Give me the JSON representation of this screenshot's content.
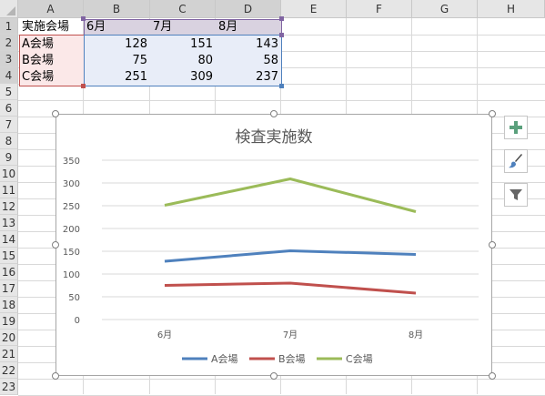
{
  "sheet": {
    "columns": [
      "A",
      "B",
      "C",
      "D",
      "E",
      "F",
      "G",
      "H"
    ],
    "rows": [
      "1",
      "2",
      "3",
      "4",
      "5",
      "6",
      "7",
      "8",
      "9",
      "10",
      "11",
      "12",
      "13",
      "14",
      "15",
      "16",
      "17",
      "18",
      "19",
      "20",
      "21",
      "22",
      "23"
    ],
    "table": {
      "header": [
        "実施会場",
        "6月",
        "7月",
        "8月"
      ],
      "rows": [
        {
          "label": "A会場",
          "values": [
            "128",
            "151",
            "143"
          ]
        },
        {
          "label": "B会場",
          "values": [
            "75",
            "80",
            "58"
          ]
        },
        {
          "label": "C会場",
          "values": [
            "251",
            "309",
            "237"
          ]
        }
      ]
    }
  },
  "colors": {
    "A": "#4f81bd",
    "B": "#c0504d",
    "C": "#9bbb59",
    "plus": "#5aa07c"
  },
  "side_buttons": {
    "add": "plus-icon",
    "style": "brush-icon",
    "filter": "filter-icon"
  },
  "chart_data": {
    "type": "line",
    "title": "検査実施数",
    "categories": [
      "6月",
      "7月",
      "8月"
    ],
    "series": [
      {
        "name": "A会場",
        "values": [
          128,
          151,
          143
        ]
      },
      {
        "name": "B会場",
        "values": [
          75,
          80,
          58
        ]
      },
      {
        "name": "C会場",
        "values": [
          251,
          309,
          237
        ]
      }
    ],
    "ylim": [
      0,
      350
    ],
    "yticks": [
      "0",
      "50",
      "100",
      "150",
      "200",
      "250",
      "300",
      "350"
    ],
    "grid": true,
    "legend": "bottom"
  }
}
